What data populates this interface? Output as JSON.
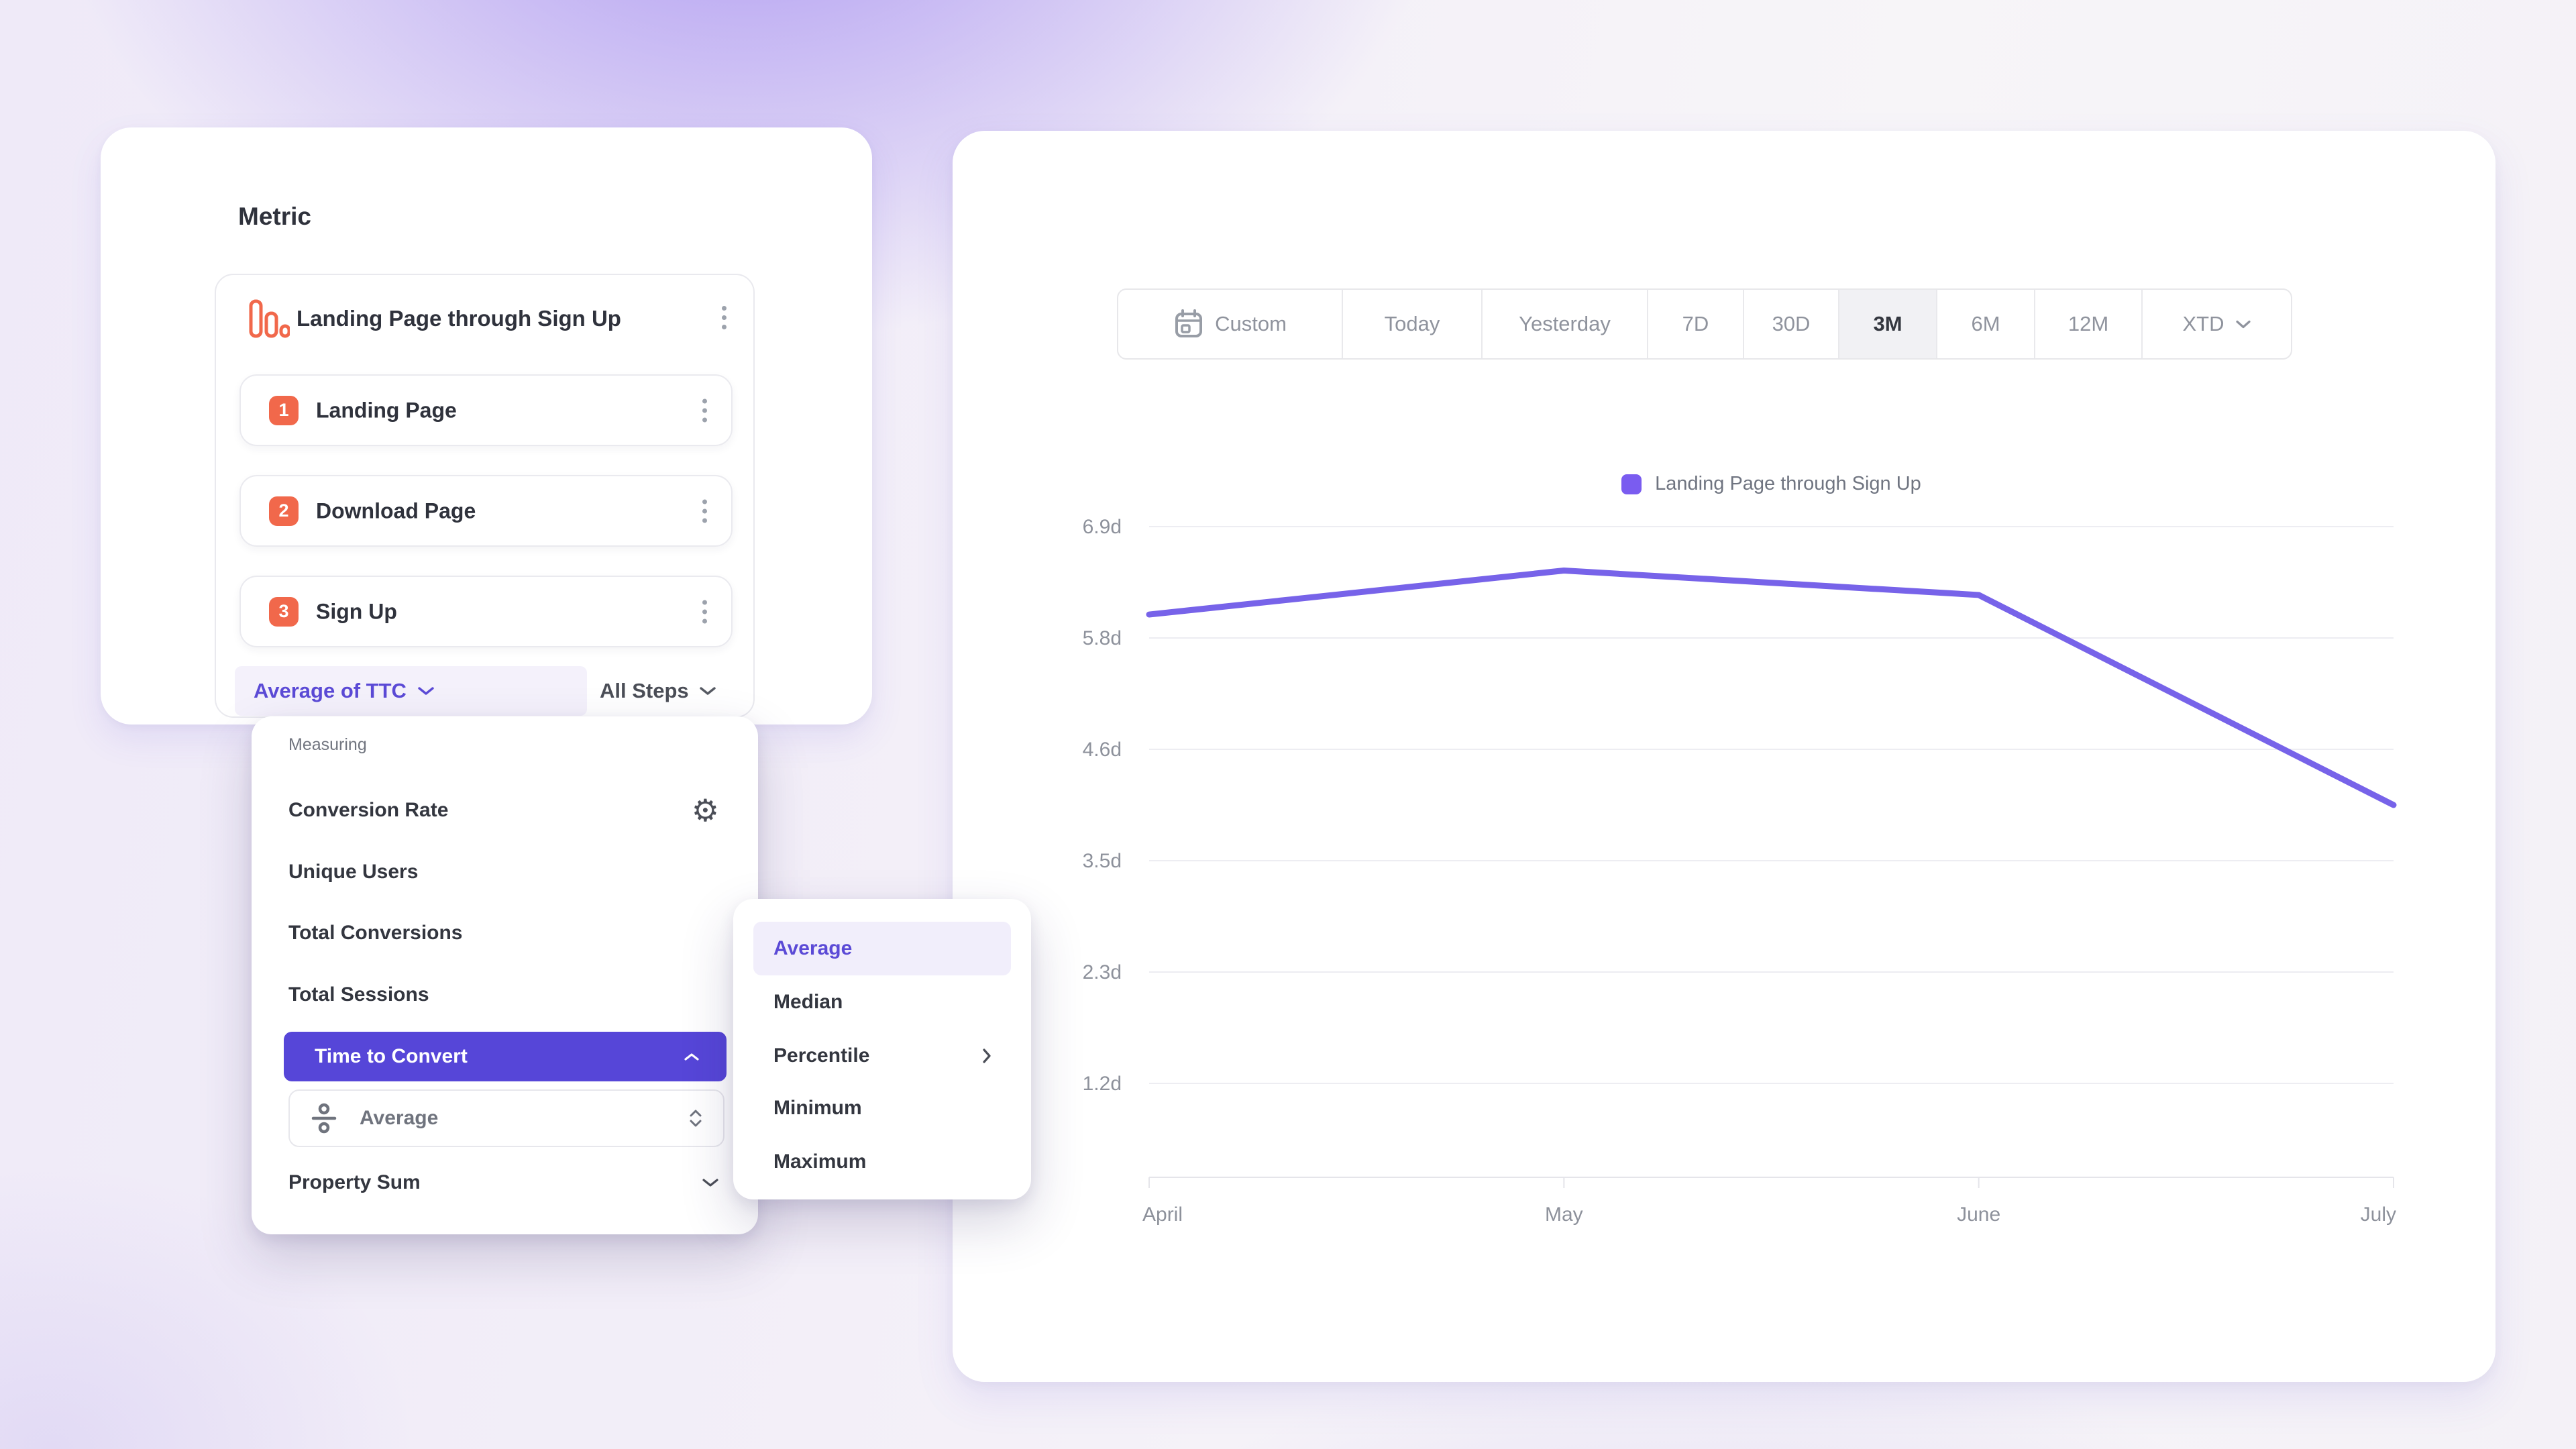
{
  "metric_panel": {
    "title": "Metric",
    "funnel": {
      "title": "Landing Page through Sign Up",
      "steps": [
        {
          "number": "1",
          "label": "Landing Page"
        },
        {
          "number": "2",
          "label": "Download Page"
        },
        {
          "number": "3",
          "label": "Sign Up"
        }
      ],
      "measurement_label": "Average of TTC",
      "steps_scope_label": "All Steps"
    }
  },
  "measuring_menu": {
    "section_label": "Measuring",
    "items": [
      {
        "label": "Conversion Rate",
        "icon": "gear-icon"
      },
      {
        "label": "Unique Users"
      },
      {
        "label": "Total Conversions"
      },
      {
        "label": "Total Sessions"
      },
      {
        "label": "Time to Convert",
        "selected": true,
        "icon": "chevron-up-icon"
      },
      {
        "label": "Property Sum",
        "icon": "chevron-down-icon"
      }
    ],
    "time_to_convert_aggregation": {
      "label": "Average",
      "icon": "divide-icon"
    }
  },
  "aggregation_submenu": {
    "items": [
      {
        "label": "Average",
        "selected": true
      },
      {
        "label": "Median"
      },
      {
        "label": "Percentile",
        "has_submenu": true
      },
      {
        "label": "Minimum"
      },
      {
        "label": "Maximum"
      }
    ]
  },
  "date_range_picker": {
    "options": [
      {
        "label": "Custom",
        "icon": "calendar-icon"
      },
      {
        "label": "Today"
      },
      {
        "label": "Yesterday"
      },
      {
        "label": "7D"
      },
      {
        "label": "30D"
      },
      {
        "label": "3M",
        "selected": true
      },
      {
        "label": "6M"
      },
      {
        "label": "12M"
      },
      {
        "label": "XTD",
        "icon": "chevron-down-icon"
      }
    ]
  },
  "chart_data": {
    "type": "line",
    "x": [
      "April",
      "May",
      "June",
      "July"
    ],
    "series": [
      {
        "name": "Landing Page through Sign Up",
        "values": [
          6.0,
          6.45,
          6.2,
          4.05
        ],
        "color": "#7763E9"
      }
    ],
    "unit": "d",
    "y_ticks": [
      "6.9d",
      "5.8d",
      "4.6d",
      "3.5d",
      "2.3d",
      "1.2d"
    ],
    "y_tick_values": [
      6.9,
      5.8,
      4.6,
      3.5,
      2.3,
      1.2
    ],
    "ylim": [
      1.2,
      6.9
    ],
    "grid": "horizontal",
    "legend_position": "top-center",
    "legend_color": "#7A5CF0"
  },
  "colors": {
    "accent_purple": "#5646D8",
    "purple_text": "#5B4AD6",
    "orange": "#F1684B",
    "line": "#7763E9",
    "legend_swatch": "#7A5CF0"
  }
}
